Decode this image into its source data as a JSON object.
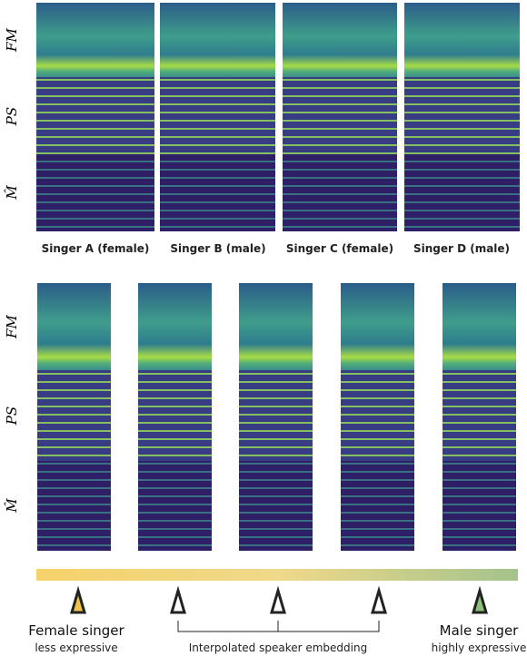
{
  "top_panel": {
    "row_labels": [
      "FM",
      "PS",
      "M̂"
    ],
    "columns": [
      "Singer A (female)",
      "Singer B (male)",
      "Singer C (female)",
      "Singer D (male)"
    ]
  },
  "bottom_panel": {
    "row_labels": [
      "FM",
      "PS",
      "M̂"
    ]
  },
  "legend": {
    "left": {
      "title": "Female singer",
      "subtitle": "less expressive"
    },
    "middle": "Interpolated speaker embedding",
    "right": {
      "title": "Male singer",
      "subtitle": "highly expressive"
    }
  }
}
